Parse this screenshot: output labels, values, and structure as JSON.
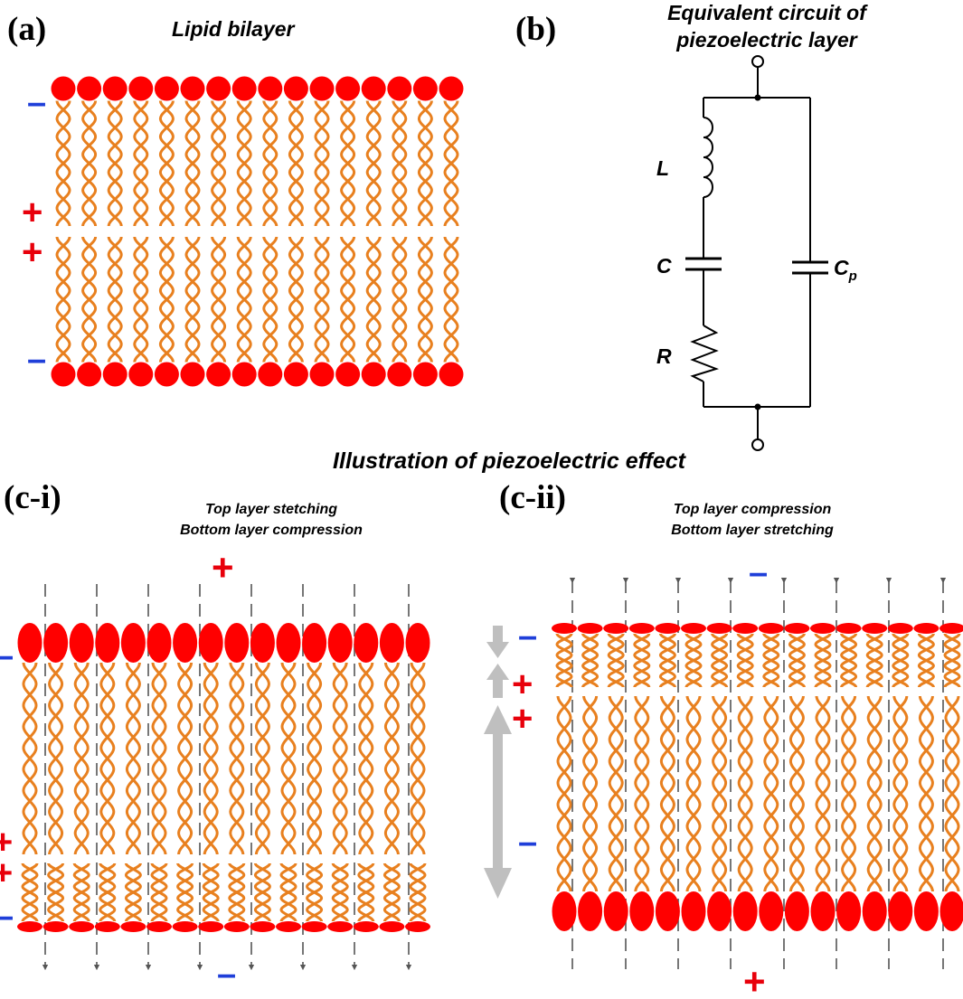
{
  "colors": {
    "head": "#ff0000",
    "tail": "#e8801f",
    "tail_outline": "#c0600a",
    "plus": "#e8000b",
    "minus": "#1f3fd9",
    "dashed": "#555555",
    "gray_arrow": "#bfbfbf",
    "wire": "#000000"
  },
  "panel_a": {
    "tag": "(a)",
    "title": "Lipid bilayer",
    "charges": {
      "top": "–",
      "middle_upper": "+",
      "middle_lower": "+",
      "bottom": "–"
    },
    "lipids_per_leaflet": 16
  },
  "panel_b": {
    "tag": "(b)",
    "title_line1": "Equivalent circuit of",
    "title_line2": "piezoelectric layer",
    "components": {
      "inductor": "L",
      "capacitor": "C",
      "resistor": "R",
      "parallel_capacitor": "C",
      "parallel_capacitor_sub": "p"
    }
  },
  "panel_c_title": "Illustration of piezoelectric effect",
  "panel_c_i": {
    "tag": "(c-i)",
    "caption_line1": "Top layer stetching",
    "caption_line2": "Bottom layer compression",
    "charges": {
      "above": "+",
      "top_left": "–",
      "middle_upper": "+",
      "middle_lower": "+",
      "bottom_left": "–",
      "below": "–"
    },
    "lipids_per_leaflet": 16
  },
  "panel_c_ii": {
    "tag": "(c-ii)",
    "caption_line1": "Top layer compression",
    "caption_line2": "Bottom layer stretching",
    "charges": {
      "above": "–",
      "top_left": "–",
      "middle_upper": "+",
      "middle_lower": "+",
      "bottom_left": "–",
      "below": "+"
    },
    "lipids_per_leaflet": 16
  }
}
